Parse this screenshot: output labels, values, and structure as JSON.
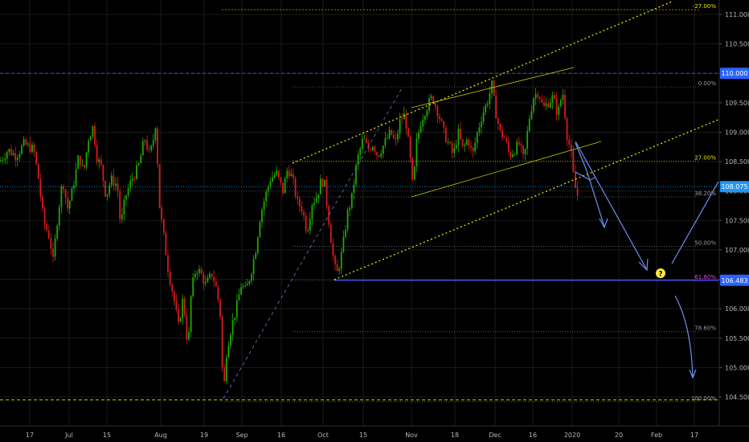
{
  "chart_data": {
    "type": "candlestick",
    "title": "",
    "y_axis": {
      "side": "right",
      "ticks": [
        "111.000",
        "110.500",
        "110.000",
        "109.500",
        "109.000",
        "108.500",
        "108.000",
        "107.500",
        "107.000",
        "106.500",
        "106.000",
        "105.500",
        "105.000",
        "104.500"
      ],
      "range": [
        104.3,
        111.2
      ]
    },
    "x_axis": {
      "ticks": [
        "17",
        "Jul",
        "15",
        "Aug",
        "19",
        "Sep",
        "16",
        "Oct",
        "15",
        "Nov",
        "18",
        "Dec",
        "16",
        "2020",
        "20",
        "Feb",
        "17"
      ]
    },
    "price_labels": [
      {
        "value": "110.000",
        "color": "#2962ff"
      },
      {
        "value": "108.075",
        "color": "#2196f3"
      },
      {
        "value": "106.483",
        "color": "#2962ff"
      }
    ],
    "fib_levels": [
      {
        "label": "-27.00%",
        "value": 111.08,
        "color": "#e6e600"
      },
      {
        "label": "0.00%",
        "value": 109.77,
        "color": "#9e9e9e"
      },
      {
        "label": "27.00%",
        "value": 108.51,
        "color": "#e6e600"
      },
      {
        "label": "38.20%",
        "value": 107.9,
        "color": "#9e9e9e"
      },
      {
        "label": "50.00%",
        "value": 107.06,
        "color": "#9e9e9e"
      },
      {
        "label": "61.80%",
        "value": 106.48,
        "color": "#e040fb"
      },
      {
        "label": "78.60%",
        "value": 105.61,
        "color": "#9e9e9e"
      },
      {
        "label": "100.00%",
        "value": 104.42,
        "color": "#9e9e9e"
      }
    ],
    "horizontal_lines": [
      {
        "value": 110.0,
        "style": "dashed",
        "color": "#2962ff"
      },
      {
        "value": 108.075,
        "style": "dotted",
        "color": "#2196f3"
      },
      {
        "value": 106.483,
        "style": "solid",
        "color": "#4a5cff"
      },
      {
        "value": 104.45,
        "style": "dashed",
        "color": "#e6e600"
      }
    ],
    "annotations": [
      {
        "type": "question-marker",
        "text": "?"
      }
    ],
    "price_path": [
      [
        0,
        108.5
      ],
      [
        10,
        108.7
      ],
      [
        20,
        108.6
      ],
      [
        30,
        108.8
      ],
      [
        42,
        108.7
      ],
      [
        48,
        108.2
      ],
      [
        54,
        107.5
      ],
      [
        62,
        107.2
      ],
      [
        66,
        106.8
      ],
      [
        72,
        107.6
      ],
      [
        78,
        108.2
      ],
      [
        84,
        107.7
      ],
      [
        90,
        108.0
      ],
      [
        98,
        108.6
      ],
      [
        104,
        108.3
      ],
      [
        110,
        108.9
      ],
      [
        116,
        109.1
      ],
      [
        120,
        108.6
      ],
      [
        126,
        108.4
      ],
      [
        132,
        107.9
      ],
      [
        138,
        108.2
      ],
      [
        146,
        108.1
      ],
      [
        150,
        107.4
      ],
      [
        156,
        107.9
      ],
      [
        164,
        108.2
      ],
      [
        172,
        108.4
      ],
      [
        180,
        108.9
      ],
      [
        186,
        108.6
      ],
      [
        190,
        108.8
      ],
      [
        194,
        109.2
      ],
      [
        198,
        107.8
      ],
      [
        204,
        107.2
      ],
      [
        210,
        106.6
      ],
      [
        216,
        106.2
      ],
      [
        222,
        105.7
      ],
      [
        228,
        106.2
      ],
      [
        234,
        105.3
      ],
      [
        238,
        106.3
      ],
      [
        244,
        106.7
      ],
      [
        250,
        106.6
      ],
      [
        256,
        106.4
      ],
      [
        264,
        106.6
      ],
      [
        270,
        106.3
      ],
      [
        274,
        105.9
      ],
      [
        278,
        104.5
      ],
      [
        282,
        105.3
      ],
      [
        288,
        105.7
      ],
      [
        294,
        106.0
      ],
      [
        300,
        106.4
      ],
      [
        306,
        106.3
      ],
      [
        312,
        106.6
      ],
      [
        318,
        107.0
      ],
      [
        324,
        107.6
      ],
      [
        330,
        107.9
      ],
      [
        336,
        108.2
      ],
      [
        344,
        108.3
      ],
      [
        352,
        108.0
      ],
      [
        358,
        108.4
      ],
      [
        364,
        108.2
      ],
      [
        370,
        107.8
      ],
      [
        376,
        107.7
      ],
      [
        382,
        107.3
      ],
      [
        388,
        107.8
      ],
      [
        394,
        107.9
      ],
      [
        400,
        108.2
      ],
      [
        404,
        108.1
      ],
      [
        410,
        107.4
      ],
      [
        416,
        106.7
      ],
      [
        420,
        106.6
      ],
      [
        426,
        107.0
      ],
      [
        432,
        107.6
      ],
      [
        438,
        107.9
      ],
      [
        444,
        108.5
      ],
      [
        452,
        108.9
      ],
      [
        458,
        108.7
      ],
      [
        464,
        108.8
      ],
      [
        470,
        108.6
      ],
      [
        478,
        108.8
      ],
      [
        486,
        109.0
      ],
      [
        492,
        108.8
      ],
      [
        498,
        109.2
      ],
      [
        504,
        109.3
      ],
      [
        510,
        108.6
      ],
      [
        514,
        108.0
      ],
      [
        518,
        108.8
      ],
      [
        524,
        109.2
      ],
      [
        530,
        109.4
      ],
      [
        538,
        109.6
      ],
      [
        546,
        109.3
      ],
      [
        552,
        109.0
      ],
      [
        558,
        108.8
      ],
      [
        564,
        108.6
      ],
      [
        570,
        109.0
      ],
      [
        576,
        108.7
      ],
      [
        582,
        108.9
      ],
      [
        588,
        108.6
      ],
      [
        594,
        109.0
      ],
      [
        600,
        109.3
      ],
      [
        606,
        109.5
      ],
      [
        612,
        109.8
      ],
      [
        616,
        109.4
      ],
      [
        622,
        109.0
      ],
      [
        628,
        108.9
      ],
      [
        634,
        108.6
      ],
      [
        640,
        108.7
      ],
      [
        646,
        108.8
      ],
      [
        652,
        108.5
      ],
      [
        658,
        109.2
      ],
      [
        664,
        109.6
      ],
      [
        670,
        109.7
      ],
      [
        676,
        109.4
      ],
      [
        682,
        109.5
      ],
      [
        688,
        109.6
      ],
      [
        694,
        109.3
      ],
      [
        700,
        109.7
      ],
      [
        706,
        108.9
      ],
      [
        710,
        108.7
      ],
      [
        714,
        108.2
      ],
      [
        718,
        107.9
      ],
      [
        722,
        108.05
      ]
    ]
  }
}
